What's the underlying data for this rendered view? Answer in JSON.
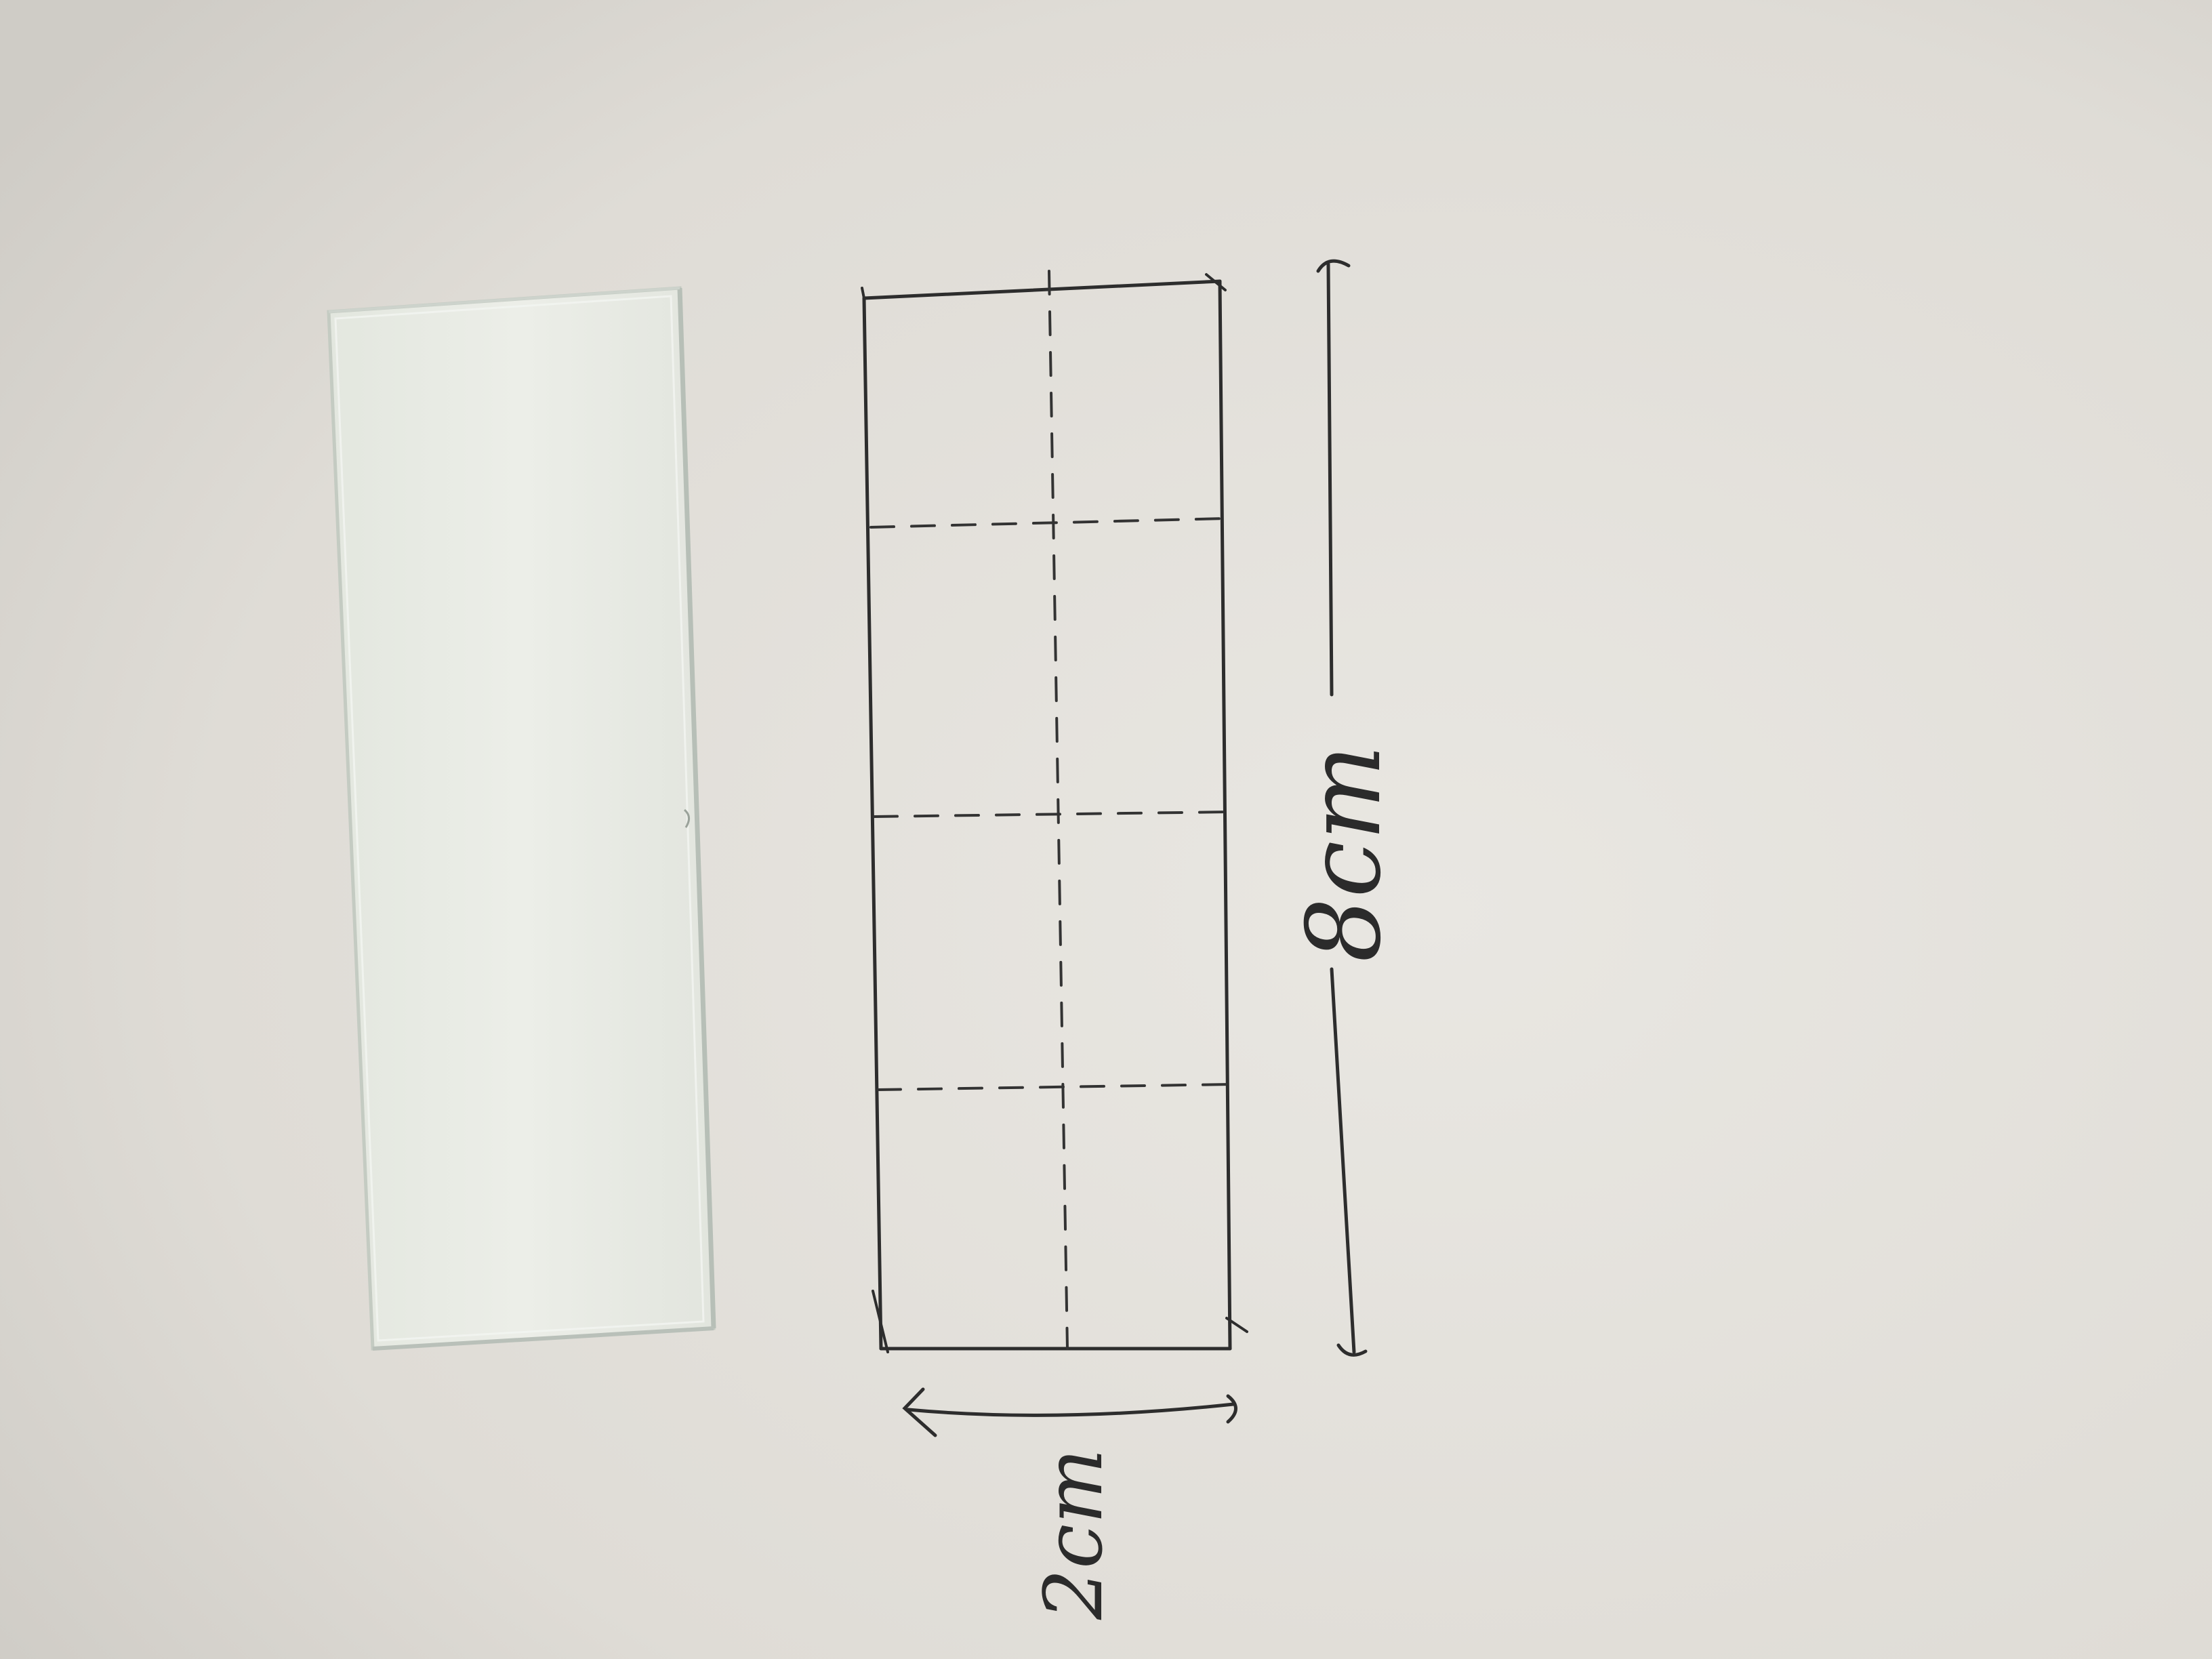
{
  "photo": {
    "paper_color": "#e4e2dd",
    "ink_color": "#2a2a2a",
    "glass_color": "#e9ece6"
  },
  "annotations": {
    "width_label": "2cm",
    "length_label": "8cm"
  }
}
